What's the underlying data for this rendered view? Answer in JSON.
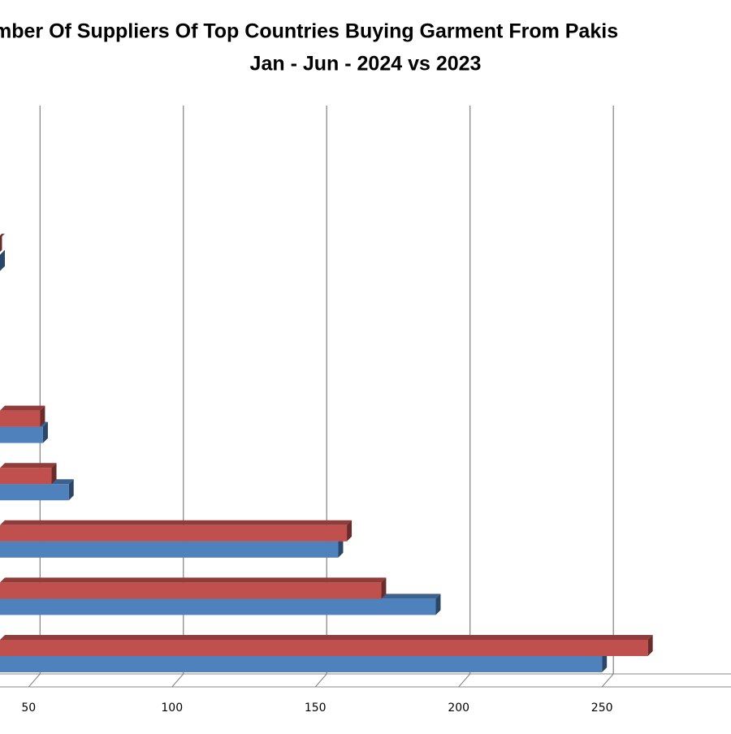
{
  "chart_data": {
    "type": "bar",
    "orientation": "horizontal",
    "title": "mber Of Suppliers Of Top Countries Buying Garment From Pakis",
    "subtitle": "Jan - Jun - 2024 vs 2023",
    "categories": [
      null,
      null,
      null,
      null,
      null,
      null,
      null,
      null,
      null,
      null
    ],
    "series": [
      {
        "color": "#4f81bd",
        "values": [
          250,
          192,
          158,
          64,
          55,
          null,
          null,
          40,
          null,
          null
        ]
      },
      {
        "color": "#c0504d",
        "values": [
          266,
          173,
          161,
          58,
          54,
          null,
          null,
          39,
          null,
          null
        ]
      }
    ],
    "xlim": [
      40,
      295
    ],
    "xticks": [
      50,
      100,
      150,
      200,
      250
    ],
    "grid": true
  }
}
